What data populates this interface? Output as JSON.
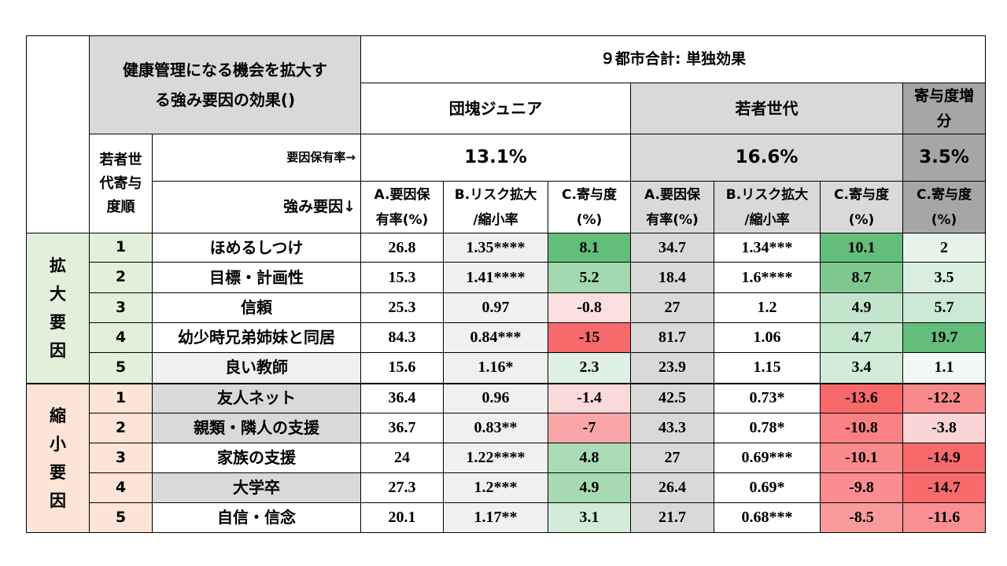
{
  "header": {
    "title_line1": "健康管理になる機会を拡大す",
    "title_line2": "る強み要因の効果()",
    "city_total": "９都市合計: 単独効果",
    "group1": "団塊ジュニア",
    "group2": "若者世代",
    "group3_line1": "寄与度増",
    "group3_line2": "分",
    "rank_label_line1": "若者世",
    "rank_label_line2": "代寄与",
    "rank_label_line3": "度順",
    "possession_label": "要因保有率→",
    "strength_label": "強み要因↓",
    "g1_rate": "13.1%",
    "g2_rate": "16.6%",
    "g3_rate": "3.5%",
    "colA_line1": "A.要因保",
    "colA_line2": "有率(%)",
    "colB_line1": "B.リスク拡大",
    "colB_line2": "/縮小率",
    "colC_line1": "C.寄与度",
    "colC_line2": "(%)"
  },
  "categories": {
    "expand": "拡大要因",
    "shrink": "縮小要因"
  },
  "colors": {
    "expand_bg": "#e2efda",
    "shrink_bg": "#fce4d6",
    "header_gray": "#d9d9d9",
    "header_dark_gray": "#a6a6a6"
  },
  "rows": [
    {
      "rank": "1",
      "factor": "ほめるしつけ",
      "a1": "26.8",
      "b1": "1.35****",
      "c1": "8.1",
      "a2": "34.7",
      "b2": "1.34***",
      "c2": "10.1",
      "d": "2",
      "c1_color": "#63be7b",
      "c2_color": "#63be7b",
      "d_color": "#e8f4ea"
    },
    {
      "rank": "2",
      "factor": "目標・計画性",
      "a1": "15.3",
      "b1": "1.41****",
      "c1": "5.2",
      "a2": "18.4",
      "b2": "1.6****",
      "c2": "8.7",
      "d": "3.5",
      "c1_color": "#a3d8b0",
      "c2_color": "#7ec890",
      "d_color": "#dbefe0"
    },
    {
      "rank": "3",
      "factor": "信頼",
      "a1": "25.3",
      "b1": "0.97",
      "c1": "-0.8",
      "a2": "27",
      "b2": "1.2",
      "c2": "4.9",
      "d": "5.7",
      "c1_color": "#fcdfe1",
      "c2_color": "#c2e5cb",
      "d_color": "#cbe9d3"
    },
    {
      "rank": "4",
      "factor": "幼少時兄弟姉妹と同居",
      "a1": "84.3",
      "b1": "0.84***",
      "c1": "-15",
      "a2": "81.7",
      "b2": "1.06",
      "c2": "4.7",
      "d": "19.7",
      "c1_color": "#f8696b",
      "c2_color": "#c4e6cd",
      "d_color": "#63be7b"
    },
    {
      "rank": "5",
      "factor": "良い教師",
      "a1": "15.6",
      "b1": "1.16*",
      "c1": "2.3",
      "a2": "23.9",
      "b2": "1.15",
      "c2": "3.4",
      "d": "1.1",
      "c1_color": "#dff1e4",
      "c2_color": "#d3ecda",
      "d_color": "#f2f9f4"
    },
    {
      "rank": "1",
      "factor": "友人ネット",
      "a1": "36.4",
      "b1": "0.96",
      "c1": "-1.4",
      "a2": "42.5",
      "b2": "0.73*",
      "c2": "-13.6",
      "d": "-12.2",
      "c1_color": "#fbd9db",
      "c2_color": "#f8696b",
      "d_color": "#f98a8c"
    },
    {
      "rank": "2",
      "factor": "親類・隣人の支援",
      "a1": "36.7",
      "b1": "0.83**",
      "c1": "-7",
      "a2": "43.3",
      "b2": "0.78*",
      "c2": "-10.8",
      "d": "-3.8",
      "c1_color": "#f9a6a8",
      "c2_color": "#f98183",
      "d_color": "#fbd4d6"
    },
    {
      "rank": "3",
      "factor": "家族の支援",
      "a1": "24",
      "b1": "1.22****",
      "c1": "4.8",
      "a2": "27",
      "b2": "0.69***",
      "c2": "-10.1",
      "d": "-14.9",
      "c1_color": "#a9dbb5",
      "c2_color": "#f98a8c",
      "d_color": "#f8696b"
    },
    {
      "rank": "4",
      "factor": "大学卒",
      "a1": "27.3",
      "b1": "1.2***",
      "c1": "4.9",
      "a2": "26.4",
      "b2": "0.69*",
      "c2": "-9.8",
      "d": "-14.7",
      "c1_color": "#a7dab3",
      "c2_color": "#f98d8f",
      "d_color": "#f86b6d"
    },
    {
      "rank": "5",
      "factor": "自信・信念",
      "a1": "20.1",
      "b1": "1.17**",
      "c1": "3.1",
      "a2": "21.7",
      "b2": "0.68***",
      "c2": "-8.5",
      "d": "-11.6",
      "c1_color": "#d2ecd9",
      "c2_color": "#f99b9d",
      "d_color": "#f98f91"
    }
  ]
}
